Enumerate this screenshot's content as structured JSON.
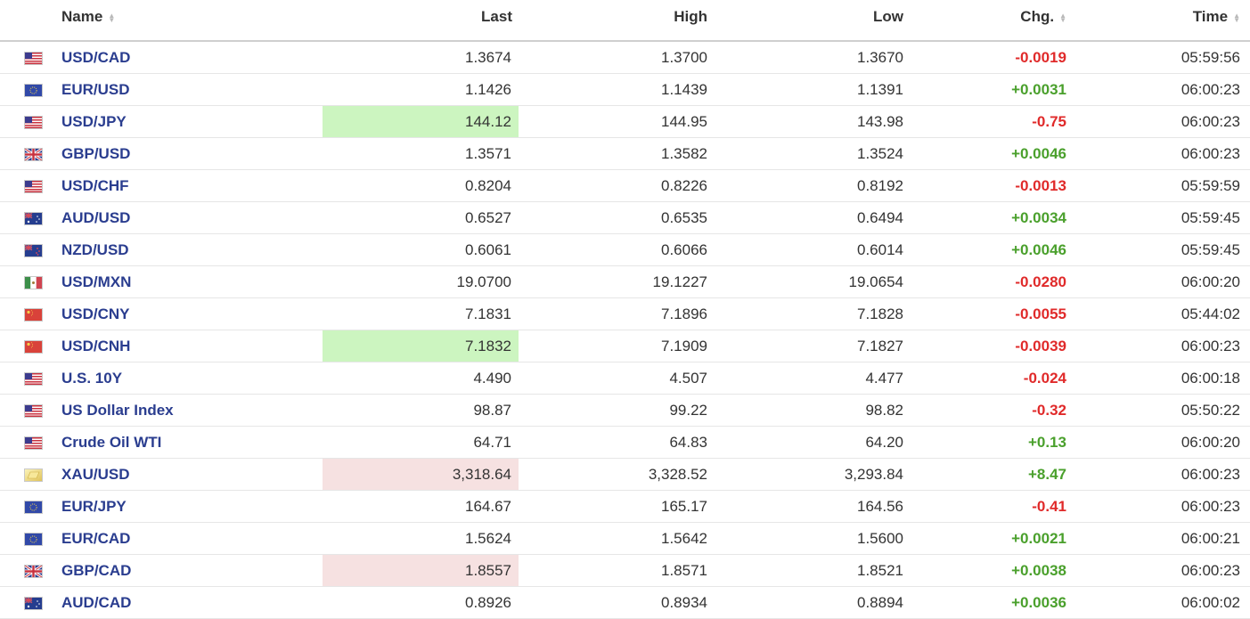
{
  "header": {
    "name": "Name",
    "last": "Last",
    "high": "High",
    "low": "Low",
    "chg": "Chg.",
    "time": "Time"
  },
  "colors": {
    "positive": "#4aa02c",
    "negative": "#e02a2a",
    "link": "#2a3d8f",
    "highlight_up": "#ccf5c0",
    "highlight_down": "#f6e1e1"
  },
  "rows": [
    {
      "flag": "us-flag-icon",
      "name": "USD/CAD",
      "last": "1.3674",
      "high": "1.3700",
      "low": "1.3670",
      "chg": "-0.0019",
      "time": "05:59:56",
      "dir": "neg",
      "hl": ""
    },
    {
      "flag": "eu-flag-icon",
      "name": "EUR/USD",
      "last": "1.1426",
      "high": "1.1439",
      "low": "1.1391",
      "chg": "+0.0031",
      "time": "06:00:23",
      "dir": "pos",
      "hl": ""
    },
    {
      "flag": "us-flag-icon",
      "name": "USD/JPY",
      "last": "144.12",
      "high": "144.95",
      "low": "143.98",
      "chg": "-0.75",
      "time": "06:00:23",
      "dir": "neg",
      "hl": "green"
    },
    {
      "flag": "uk-flag-icon",
      "name": "GBP/USD",
      "last": "1.3571",
      "high": "1.3582",
      "low": "1.3524",
      "chg": "+0.0046",
      "time": "06:00:23",
      "dir": "pos",
      "hl": ""
    },
    {
      "flag": "us-flag-icon",
      "name": "USD/CHF",
      "last": "0.8204",
      "high": "0.8226",
      "low": "0.8192",
      "chg": "-0.0013",
      "time": "05:59:59",
      "dir": "neg",
      "hl": ""
    },
    {
      "flag": "au-flag-icon",
      "name": "AUD/USD",
      "last": "0.6527",
      "high": "0.6535",
      "low": "0.6494",
      "chg": "+0.0034",
      "time": "05:59:45",
      "dir": "pos",
      "hl": ""
    },
    {
      "flag": "nz-flag-icon",
      "name": "NZD/USD",
      "last": "0.6061",
      "high": "0.6066",
      "low": "0.6014",
      "chg": "+0.0046",
      "time": "05:59:45",
      "dir": "pos",
      "hl": ""
    },
    {
      "flag": "mx-flag-icon",
      "name": "USD/MXN",
      "last": "19.0700",
      "high": "19.1227",
      "low": "19.0654",
      "chg": "-0.0280",
      "time": "06:00:20",
      "dir": "neg",
      "hl": ""
    },
    {
      "flag": "cn-flag-icon",
      "name": "USD/CNY",
      "last": "7.1831",
      "high": "7.1896",
      "low": "7.1828",
      "chg": "-0.0055",
      "time": "05:44:02",
      "dir": "neg",
      "hl": ""
    },
    {
      "flag": "cn-flag-icon",
      "name": "USD/CNH",
      "last": "7.1832",
      "high": "7.1909",
      "low": "7.1827",
      "chg": "-0.0039",
      "time": "06:00:23",
      "dir": "neg",
      "hl": "green"
    },
    {
      "flag": "us-flag-icon",
      "name": "U.S. 10Y",
      "last": "4.490",
      "high": "4.507",
      "low": "4.477",
      "chg": "-0.024",
      "time": "06:00:18",
      "dir": "neg",
      "hl": ""
    },
    {
      "flag": "us-flag-icon",
      "name": "US Dollar Index",
      "last": "98.87",
      "high": "99.22",
      "low": "98.82",
      "chg": "-0.32",
      "time": "05:50:22",
      "dir": "neg",
      "hl": ""
    },
    {
      "flag": "us-flag-icon",
      "name": "Crude Oil WTI",
      "last": "64.71",
      "high": "64.83",
      "low": "64.20",
      "chg": "+0.13",
      "time": "06:00:20",
      "dir": "pos",
      "hl": ""
    },
    {
      "flag": "gold-icon",
      "name": "XAU/USD",
      "last": "3,318.64",
      "high": "3,328.52",
      "low": "3,293.84",
      "chg": "+8.47",
      "time": "06:00:23",
      "dir": "pos",
      "hl": "red"
    },
    {
      "flag": "eu-flag-icon",
      "name": "EUR/JPY",
      "last": "164.67",
      "high": "165.17",
      "low": "164.56",
      "chg": "-0.41",
      "time": "06:00:23",
      "dir": "neg",
      "hl": ""
    },
    {
      "flag": "eu-flag-icon",
      "name": "EUR/CAD",
      "last": "1.5624",
      "high": "1.5642",
      "low": "1.5600",
      "chg": "+0.0021",
      "time": "06:00:21",
      "dir": "pos",
      "hl": ""
    },
    {
      "flag": "uk-flag-icon",
      "name": "GBP/CAD",
      "last": "1.8557",
      "high": "1.8571",
      "low": "1.8521",
      "chg": "+0.0038",
      "time": "06:00:23",
      "dir": "pos",
      "hl": "red"
    },
    {
      "flag": "au-flag-icon",
      "name": "AUD/CAD",
      "last": "0.8926",
      "high": "0.8934",
      "low": "0.8894",
      "chg": "+0.0036",
      "time": "06:00:02",
      "dir": "pos",
      "hl": ""
    }
  ]
}
